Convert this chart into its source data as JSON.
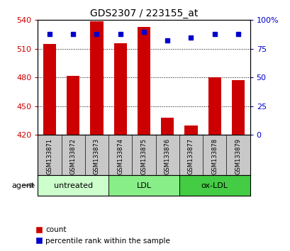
{
  "title": "GDS2307 / 223155_at",
  "samples": [
    "GSM133871",
    "GSM133872",
    "GSM133873",
    "GSM133874",
    "GSM133875",
    "GSM133876",
    "GSM133877",
    "GSM133878",
    "GSM133879"
  ],
  "counts": [
    515,
    482,
    539,
    516,
    533,
    438,
    430,
    480,
    477
  ],
  "percentiles": [
    88,
    88,
    88,
    88,
    90,
    82,
    85,
    88,
    88
  ],
  "y_min": 420,
  "y_max": 540,
  "y_ticks": [
    420,
    450,
    480,
    510,
    540
  ],
  "y_right_ticks": [
    0,
    25,
    50,
    75,
    100
  ],
  "y_right_labels": [
    "0",
    "25",
    "50",
    "75",
    "100%"
  ],
  "bar_color": "#cc0000",
  "dot_color": "#0000cc",
  "groups": [
    {
      "label": "untreated",
      "start": 0,
      "end": 3,
      "color": "#ccffcc"
    },
    {
      "label": "LDL",
      "start": 3,
      "end": 6,
      "color": "#88ee88"
    },
    {
      "label": "ox-LDL",
      "start": 6,
      "end": 9,
      "color": "#44cc44"
    }
  ],
  "legend_count_label": "count",
  "legend_pct_label": "percentile rank within the sample",
  "agent_label": "agent",
  "label_bg": "#c8c8c8",
  "ax_bg": "#ffffff",
  "tick_color_left": "#cc0000",
  "tick_color_right": "#0000cc"
}
